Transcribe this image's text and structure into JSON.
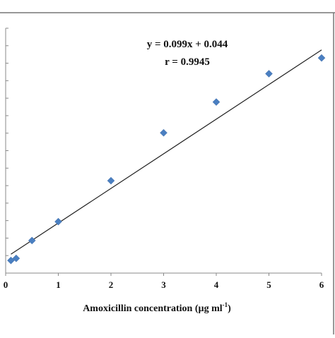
{
  "chart_data": {
    "type": "scatter",
    "title": "",
    "xlabel": "Amoxicillin concentration (µg ml",
    "xlabel_superscript": "-1",
    "xlabel_suffix": ")",
    "ylabel": "",
    "xlim": [
      0,
      6
    ],
    "ylim": [
      0,
      0.7
    ],
    "x_ticks": [
      "0",
      "1",
      "2",
      "3",
      "4",
      "5",
      "6"
    ],
    "grid": false,
    "legend": "none",
    "series": [
      {
        "marker": "diamond",
        "color": "#4a7fc1",
        "points": [
          {
            "x": 0.1,
            "y": 0.036
          },
          {
            "x": 0.2,
            "y": 0.042
          },
          {
            "x": 0.5,
            "y": 0.093
          },
          {
            "x": 1,
            "y": 0.147
          },
          {
            "x": 2,
            "y": 0.264
          },
          {
            "x": 3,
            "y": 0.401
          },
          {
            "x": 4,
            "y": 0.489
          },
          {
            "x": 5,
            "y": 0.57
          },
          {
            "x": 6,
            "y": 0.615
          }
        ]
      }
    ],
    "trendline": {
      "slope": 0.099,
      "intercept": 0.044,
      "x_range": [
        0.1,
        6
      ]
    },
    "annotations": {
      "equation": "y = 0.099x + 0.044",
      "r_value": "r = 0.9945"
    }
  }
}
